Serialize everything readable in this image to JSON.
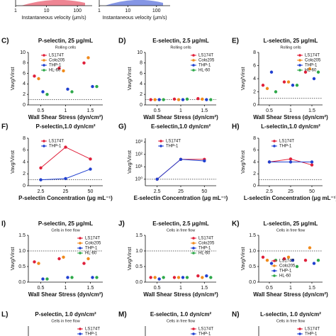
{
  "chart_data": [
    {
      "type": "scatter",
      "x_label": "Instantaneous velocity (μm/s)",
      "xlim": [
        1,
        300
      ],
      "xticks": [
        1,
        10,
        100
      ],
      "log_x": true,
      "color": "#e0203a"
    },
    {
      "type": "scatter",
      "x_label": "Instantaneous velocity (μm/s)",
      "xlim": [
        1,
        300
      ],
      "xticks": [
        1,
        10,
        100
      ],
      "log_x": true,
      "color": "#2040d0"
    },
    {
      "type": "dot",
      "label": "C)",
      "title": "P-selectin, 25 μg/mL",
      "subtitle": "Rolling cells",
      "x_label": "Wall Shear Stress (dyn/cm²)",
      "y_label": "Vavg/Vinst",
      "categories": [
        "0.5",
        "1",
        "1.5"
      ],
      "ylim": [
        0,
        10
      ],
      "yticks": [
        0,
        2,
        4,
        6,
        8,
        10
      ],
      "reference_line": 1,
      "legend": "upper left",
      "series": [
        {
          "name": "LS174T",
          "color": "#e0203a",
          "values": [
            5.5,
            7,
            8
          ]
        },
        {
          "name": "Colo205",
          "color": "#f08a1c",
          "values": [
            5,
            6.5,
            9
          ]
        },
        {
          "name": "THP-1",
          "color": "#2040d0",
          "values": [
            2.5,
            3,
            3.5
          ]
        },
        {
          "name": "HL-60",
          "color": "#2ea84a",
          "values": [
            2,
            2.5,
            3.5
          ]
        }
      ]
    },
    {
      "type": "dot",
      "label": "D)",
      "title": "E-selectin, 2.5 μg/mL",
      "subtitle": "Rolling cells",
      "x_label": "Wall Shear Stress (dyn/cm²)",
      "y_label": "Vavg/Vinst",
      "categories": [
        "0.5",
        "1",
        "1.5"
      ],
      "ylim": [
        0,
        10
      ],
      "yticks": [
        0,
        2,
        4,
        6,
        8,
        10
      ],
      "reference_line": 1,
      "legend": "upper right",
      "series": [
        {
          "name": "LS174T",
          "color": "#e0203a",
          "values": [
            1,
            1.1,
            1.2
          ]
        },
        {
          "name": "Colo205",
          "color": "#f08a1c",
          "values": [
            1,
            1,
            1.1
          ]
        },
        {
          "name": "THP-1",
          "color": "#2040d0",
          "values": [
            1,
            1,
            1
          ]
        },
        {
          "name": "HL-60",
          "color": "#2ea84a",
          "values": [
            1,
            1.1,
            1
          ]
        }
      ]
    },
    {
      "type": "dot",
      "label": "E)",
      "title": "L-selectin, 25 μg/mL",
      "subtitle": "Rolling cells",
      "x_label": "Wall Shear Stress (dyn/cm²)",
      "y_label": "Vavg/Vinst",
      "categories": [
        "0.5",
        "1",
        "1.5"
      ],
      "ylim": [
        0,
        8
      ],
      "yticks": [
        0,
        2,
        4,
        6,
        8
      ],
      "reference_line": 1,
      "legend": "upper right",
      "series": [
        {
          "name": "LS174T",
          "color": "#e0203a",
          "values": [
            3,
            3.5,
            5
          ]
        },
        {
          "name": "Colo205",
          "color": "#f08a1c",
          "values": [
            2.5,
            3.5,
            5.5
          ]
        },
        {
          "name": "THP-1",
          "color": "#2040d0",
          "values": [
            5,
            3,
            4
          ]
        },
        {
          "name": "HL-60",
          "color": "#2ea84a",
          "values": [
            2,
            3,
            5
          ]
        }
      ]
    },
    {
      "type": "line",
      "label": "F)",
      "title": "P-selectin,1.0 dyn/cm²",
      "x_label": "P-selectin Concentration (μg mL⁻¹)",
      "y_label": "Vavg/Vinst",
      "categories": [
        "2.5",
        "25",
        "50"
      ],
      "ylim": [
        0,
        8
      ],
      "yticks": [
        0,
        2,
        4,
        6,
        8
      ],
      "reference_line": 1,
      "legend": "upper left",
      "series": [
        {
          "name": "LS174T",
          "color": "#e0203a",
          "values": [
            3,
            6.5,
            4.5
          ]
        },
        {
          "name": "THP-1",
          "color": "#2040d0",
          "values": [
            1,
            1.2,
            2.8
          ]
        }
      ]
    },
    {
      "type": "line",
      "label": "G)",
      "title": "E-selectin,1.0 dyn/cm²",
      "x_label": "E-selectin Concentration (μg mL⁻¹)",
      "y_label": "Vavg/Vinst",
      "categories": [
        "2.5",
        "25",
        "50"
      ],
      "ylim": [
        0.3,
        2000
      ],
      "log_y": true,
      "yticks": [
        {
          "value": 1,
          "label": "10⁰"
        },
        {
          "value": 10,
          "label": "10¹"
        },
        {
          "value": 100,
          "label": "10²"
        },
        {
          "value": 1000,
          "label": "10³"
        }
      ],
      "reference_line": 1,
      "legend": "upper left",
      "series": [
        {
          "name": "LS174T",
          "color": "#e0203a",
          "values": [
            1,
            40,
            40
          ]
        },
        {
          "name": "THP-1",
          "color": "#2040d0",
          "values": [
            1,
            40,
            30
          ]
        }
      ]
    },
    {
      "type": "line",
      "label": "H)",
      "title": "L-selectin,1.0 dyn/cm²",
      "x_label": "L-selectin Concentration (μg mL⁻¹)",
      "y_label": "Vavg/Vinst",
      "categories": [
        "2.5",
        "25",
        "50"
      ],
      "ylim": [
        0,
        8
      ],
      "yticks": [
        0,
        2,
        4,
        6,
        8
      ],
      "reference_line": 1,
      "legend": "upper left",
      "series": [
        {
          "name": "LS174T",
          "color": "#e0203a",
          "values": [
            4,
            4.5,
            3.5
          ]
        },
        {
          "name": "THP-1",
          "color": "#2040d0",
          "values": [
            4,
            4,
            4
          ]
        }
      ]
    },
    {
      "type": "dot",
      "label": "I)",
      "title": "P-selectin, 25 μg/mL",
      "subtitle": "Cells in free flow",
      "x_label": "Wall Shear Stress (dyn/cm²)",
      "y_label": "Vavg/Vinst",
      "categories": [
        "0.5",
        "1",
        "1.5"
      ],
      "ylim": [
        0,
        1.5
      ],
      "yticks": [
        {
          "value": 0,
          "label": "0.0"
        },
        {
          "value": 0.5,
          "label": "0.5"
        },
        {
          "value": 1,
          "label": "1.0"
        },
        {
          "value": 1.5,
          "label": "1.5"
        }
      ],
      "reference_line": 1,
      "legend": "upper right",
      "series": [
        {
          "name": "LS174T",
          "color": "#e0203a",
          "values": [
            0.65,
            0.75,
            0.6
          ]
        },
        {
          "name": "Colo205",
          "color": "#f08a1c",
          "values": [
            0.6,
            0.8,
            0.75
          ]
        },
        {
          "name": "THP-1",
          "color": "#2040d0",
          "values": [
            0.1,
            0.15,
            0.15
          ]
        },
        {
          "name": "HL-60",
          "color": "#2ea84a",
          "values": [
            0.1,
            0.15,
            0.15
          ]
        }
      ]
    },
    {
      "type": "dot",
      "label": "J)",
      "title": "E-selectin, 2.5 μg/mL",
      "subtitle": "Cells in free flow",
      "x_label": "Wall Shear Stress (dyn/cm²)",
      "y_label": "Vavg/Vinst",
      "categories": [
        "0.5",
        "1",
        "1.5"
      ],
      "ylim": [
        0,
        1.5
      ],
      "yticks": [
        {
          "value": 0,
          "label": "0.0"
        },
        {
          "value": 0.5,
          "label": "0.5"
        },
        {
          "value": 1,
          "label": "1.0"
        },
        {
          "value": 1.5,
          "label": "1.5"
        }
      ],
      "reference_line": 1,
      "legend": "upper right",
      "series": [
        {
          "name": "LS174T",
          "color": "#e0203a",
          "values": [
            0.15,
            0.15,
            0.2
          ]
        },
        {
          "name": "Colo205",
          "color": "#f08a1c",
          "values": [
            0.15,
            0.15,
            0.15
          ]
        },
        {
          "name": "THP-1",
          "color": "#2040d0",
          "values": [
            0.1,
            0.15,
            0.2
          ]
        },
        {
          "name": "HL-60",
          "color": "#2ea84a",
          "values": [
            0.15,
            0.15,
            0.15
          ]
        }
      ]
    },
    {
      "type": "dot",
      "label": "K)",
      "title": "L-selectin, 25 μg/mL",
      "subtitle": "Cells in free flow",
      "x_label": "Wall Shear Stress (dyn/cm²)",
      "y_label": "Vavg/Vinst",
      "categories": [
        "0.5",
        "1",
        "1.5"
      ],
      "ylim": [
        0,
        1.5
      ],
      "yticks": [
        {
          "value": 0,
          "label": "0.0"
        },
        {
          "value": 0.5,
          "label": "0.5"
        },
        {
          "value": 1,
          "label": "1.0"
        },
        {
          "value": 1.5,
          "label": "1.5"
        }
      ],
      "reference_line": 1,
      "legend": "lower left",
      "series": [
        {
          "name": "LS174T",
          "color": "#e0203a",
          "values": [
            0.8,
            0.75,
            0.7
          ]
        },
        {
          "name": "Colo205",
          "color": "#f08a1c",
          "values": [
            0.7,
            0.8,
            1.1
          ]
        },
        {
          "name": "THP-1",
          "color": "#2040d0",
          "values": [
            0.6,
            0.7,
            0.6
          ]
        },
        {
          "name": "HL-60",
          "color": "#2ea84a",
          "values": [
            0.7,
            0.5,
            0.7
          ]
        }
      ]
    },
    {
      "type": "line",
      "label": "L)",
      "title": "P-selectin, 1.0 dyn/cm²",
      "subtitle": "Cells in free flow",
      "legend": "upper right",
      "series": [
        {
          "name": "LS174T",
          "color": "#e0203a"
        },
        {
          "name": "THP-1",
          "color": "#2040d0"
        }
      ]
    },
    {
      "type": "line",
      "label": "M)",
      "title": "E-selectin, 1.0 dyn/cm²",
      "subtitle": "Cells in free flow",
      "legend": "upper right",
      "series": [
        {
          "name": "LS174T",
          "color": "#e0203a"
        },
        {
          "name": "THP-1",
          "color": "#2040d0"
        }
      ]
    },
    {
      "type": "line",
      "label": "N)",
      "title": "L-selectin, 1.0 dyn/cm²",
      "subtitle": "Cells in free flow",
      "legend": "upper right",
      "series": [
        {
          "name": "LS174T",
          "color": "#e0203a"
        },
        {
          "name": "THP-1",
          "color": "#2040d0"
        }
      ]
    }
  ]
}
